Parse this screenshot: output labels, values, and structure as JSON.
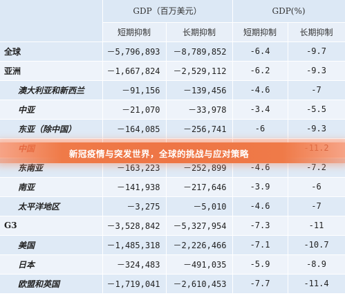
{
  "table": {
    "header": {
      "group1": "GDP（百万美元）",
      "group2": "GDP(%)",
      "sub": [
        "短期抑制",
        "长期抑制",
        "短期抑制",
        "长期抑制"
      ]
    },
    "rows": [
      {
        "name": "全球",
        "sub": false,
        "v1": "－5,796,893",
        "v2": "－8,789,852",
        "p1": "-6.4",
        "p2": "-9.7"
      },
      {
        "name": "亚洲",
        "sub": false,
        "v1": "－1,667,824",
        "v2": "－2,529,112",
        "p1": "-6.2",
        "p2": "-9.3"
      },
      {
        "name": "澳大利亚和新西兰",
        "sub": true,
        "v1": "－91,156",
        "v2": "－139,456",
        "p1": "-4.6",
        "p2": "-7"
      },
      {
        "name": "中亚",
        "sub": true,
        "v1": "－21,070",
        "v2": "－33,978",
        "p1": "-3.4",
        "p2": "-5.5"
      },
      {
        "name": "东亚（除中国）",
        "sub": true,
        "v1": "－164,085",
        "v2": "－256,741",
        "p1": "-6",
        "p2": "-9.3"
      },
      {
        "name": "中国",
        "sub": true,
        "v1": "",
        "v2": "",
        "p1": "",
        "p2": "-11.2",
        "highlight": true
      },
      {
        "name": "东南亚",
        "sub": true,
        "v1": "－163,223",
        "v2": "－252,899",
        "p1": "-4.6",
        "p2": "-7.2"
      },
      {
        "name": "南亚",
        "sub": true,
        "v1": "－141,938",
        "v2": "－217,646",
        "p1": "-3.9",
        "p2": "-6"
      },
      {
        "name": "太平洋地区",
        "sub": true,
        "v1": "－3,275",
        "v2": "－5,010",
        "p1": "-4.6",
        "p2": "-7"
      },
      {
        "name": "G3",
        "sub": false,
        "v1": "－3,528,842",
        "v2": "－5,327,954",
        "p1": "-7.3",
        "p2": "-11"
      },
      {
        "name": "美国",
        "sub": true,
        "v1": "－1,485,318",
        "v2": "－2,226,466",
        "p1": "-7.1",
        "p2": "-10.7"
      },
      {
        "name": "日本",
        "sub": true,
        "v1": "－324,483",
        "v2": "－491,035",
        "p1": "-5.9",
        "p2": "-8.9"
      },
      {
        "name": "欧盟和英国",
        "sub": true,
        "v1": "－1,719,041",
        "v2": "－2,610,453",
        "p1": "-7.7",
        "p2": "-11.4"
      }
    ]
  },
  "banner": {
    "text": "新冠疫情与突发世界，全球的挑战与应对策略"
  },
  "colors": {
    "header": "#dce8f5",
    "row_odd": "#dfeaf6",
    "row_even": "#eef3fa",
    "banner": "#ee7545",
    "highlight_text": "#c6402d"
  }
}
